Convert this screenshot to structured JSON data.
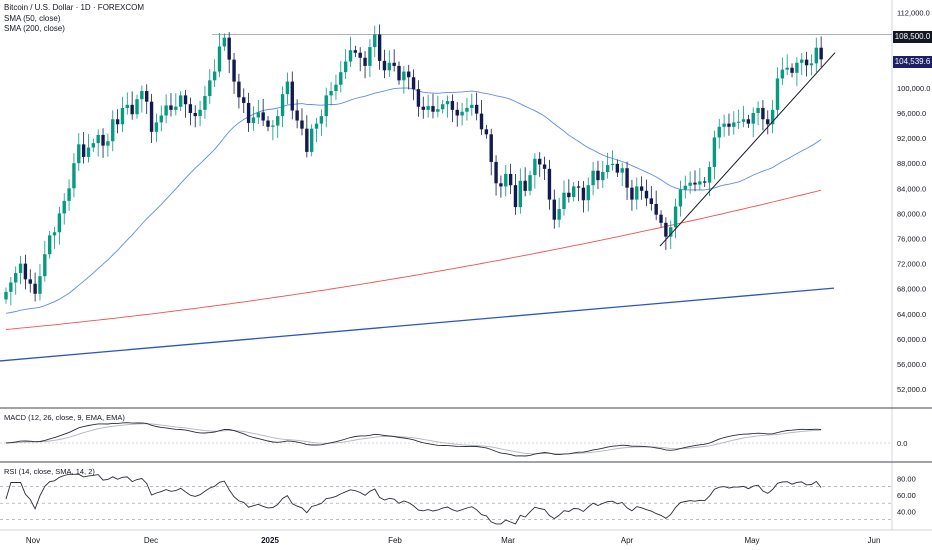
{
  "header": {
    "title": "Bitcoin / U.S. Dollar · 1D · FOREXCOM",
    "sma50_label": "SMA (50, close)",
    "sma200_label": "SMA (200, close)"
  },
  "panes": {
    "macd_label": "MACD (12, 26, close, 9, EMA, EMA)",
    "rsi_label": "RSI (14, close, SMA, 14, 2)"
  },
  "price_tags": {
    "resistance": "108,500.0",
    "last": "104,539.6"
  },
  "colors": {
    "up": "#089981",
    "down": "#131a4f",
    "sma50": "#5b8def",
    "sma200": "#ef5350",
    "trendline": "#2b54c4",
    "tag_dark": "#131722",
    "tag_navy": "#1f1f66"
  },
  "chart_data": [
    {
      "type": "candlestick",
      "title": "Bitcoin / U.S. Dollar · 1D · FOREXCOM",
      "y_ticks": [
        "112,000.0",
        "108,000.0",
        "104,000.0",
        "100,000.0",
        "96,000.0",
        "92,000.0",
        "88,000.0",
        "84,000.0",
        "80,000.0",
        "76,000.0",
        "72,000.0",
        "68,000.0",
        "64,000.0",
        "60,000.0",
        "56,000.0",
        "52,000.0"
      ],
      "y_range": [
        49000,
        114000
      ],
      "x_labels": [
        "Nov",
        "Dec",
        "2025",
        "Feb",
        "Mar",
        "Apr",
        "May",
        "Jun"
      ],
      "closes": [
        67500,
        69000,
        70500,
        72000,
        69500,
        68800,
        67200,
        70000,
        73500,
        76500,
        77000,
        80000,
        82000,
        84000,
        88000,
        91000,
        89000,
        90500,
        91200,
        92500,
        90800,
        91500,
        95000,
        94200,
        96800,
        97300,
        95800,
        98200,
        99500,
        97800,
        93000,
        94500,
        95600,
        97200,
        96500,
        97000,
        98800,
        97400,
        96000,
        95500,
        96500,
        98700,
        101200,
        102600,
        106600,
        108000,
        104500,
        101000,
        98500,
        97600,
        94400,
        95300,
        96100,
        94800,
        93800,
        94000,
        95500,
        99000,
        101000,
        96400,
        94800,
        93500,
        89800,
        93500,
        94300,
        95500,
        98800,
        99500,
        100500,
        102500,
        104200,
        106000,
        105600,
        104800,
        103500,
        106500,
        108500,
        104300,
        102800,
        104000,
        103500,
        101200,
        102600,
        101700,
        99800,
        97000,
        96500,
        97100,
        96200,
        96600,
        97400,
        97900,
        96500,
        95600,
        96200,
        96800,
        97300,
        95900,
        93400,
        92600,
        88200,
        84800,
        84300,
        86300,
        84500,
        81000,
        85200,
        83600,
        86100,
        88700,
        87800,
        87100,
        82200,
        79000,
        80700,
        83300,
        82600,
        84300,
        84100,
        82100,
        84500,
        86800,
        85300,
        86600,
        87700,
        87900,
        86500,
        87200,
        84100,
        82200,
        84300,
        83600,
        82400,
        81500,
        79800,
        78500,
        76300,
        77800,
        81100,
        83800,
        84400,
        84900,
        84600,
        85100,
        84900,
        87400,
        92100,
        93800,
        94300,
        93800,
        94500,
        94600,
        95000,
        94300,
        96000,
        96800,
        95000,
        94200,
        96500,
        101500,
        102900,
        103200,
        102400,
        104000,
        104500,
        103600,
        103900,
        106400,
        104539.6
      ],
      "resistance_level": 108500,
      "last_price": 104539.6,
      "series": [
        {
          "name": "SMA (50, close)",
          "first": 63000,
          "last": 90000
        },
        {
          "name": "SMA (200, close)",
          "first": 61500,
          "last": 83700
        }
      ]
    },
    {
      "type": "line",
      "title": "MACD (12, 26, close, 9, EMA, EMA)",
      "y_ticks": [
        "0.0"
      ]
    },
    {
      "type": "line",
      "title": "RSI (14, close, SMA, 14, 2)",
      "y_ticks": [
        "80.00",
        "60.00",
        "40.00"
      ],
      "ylim": [
        20,
        95
      ],
      "bands": [
        70,
        50,
        30
      ]
    }
  ]
}
